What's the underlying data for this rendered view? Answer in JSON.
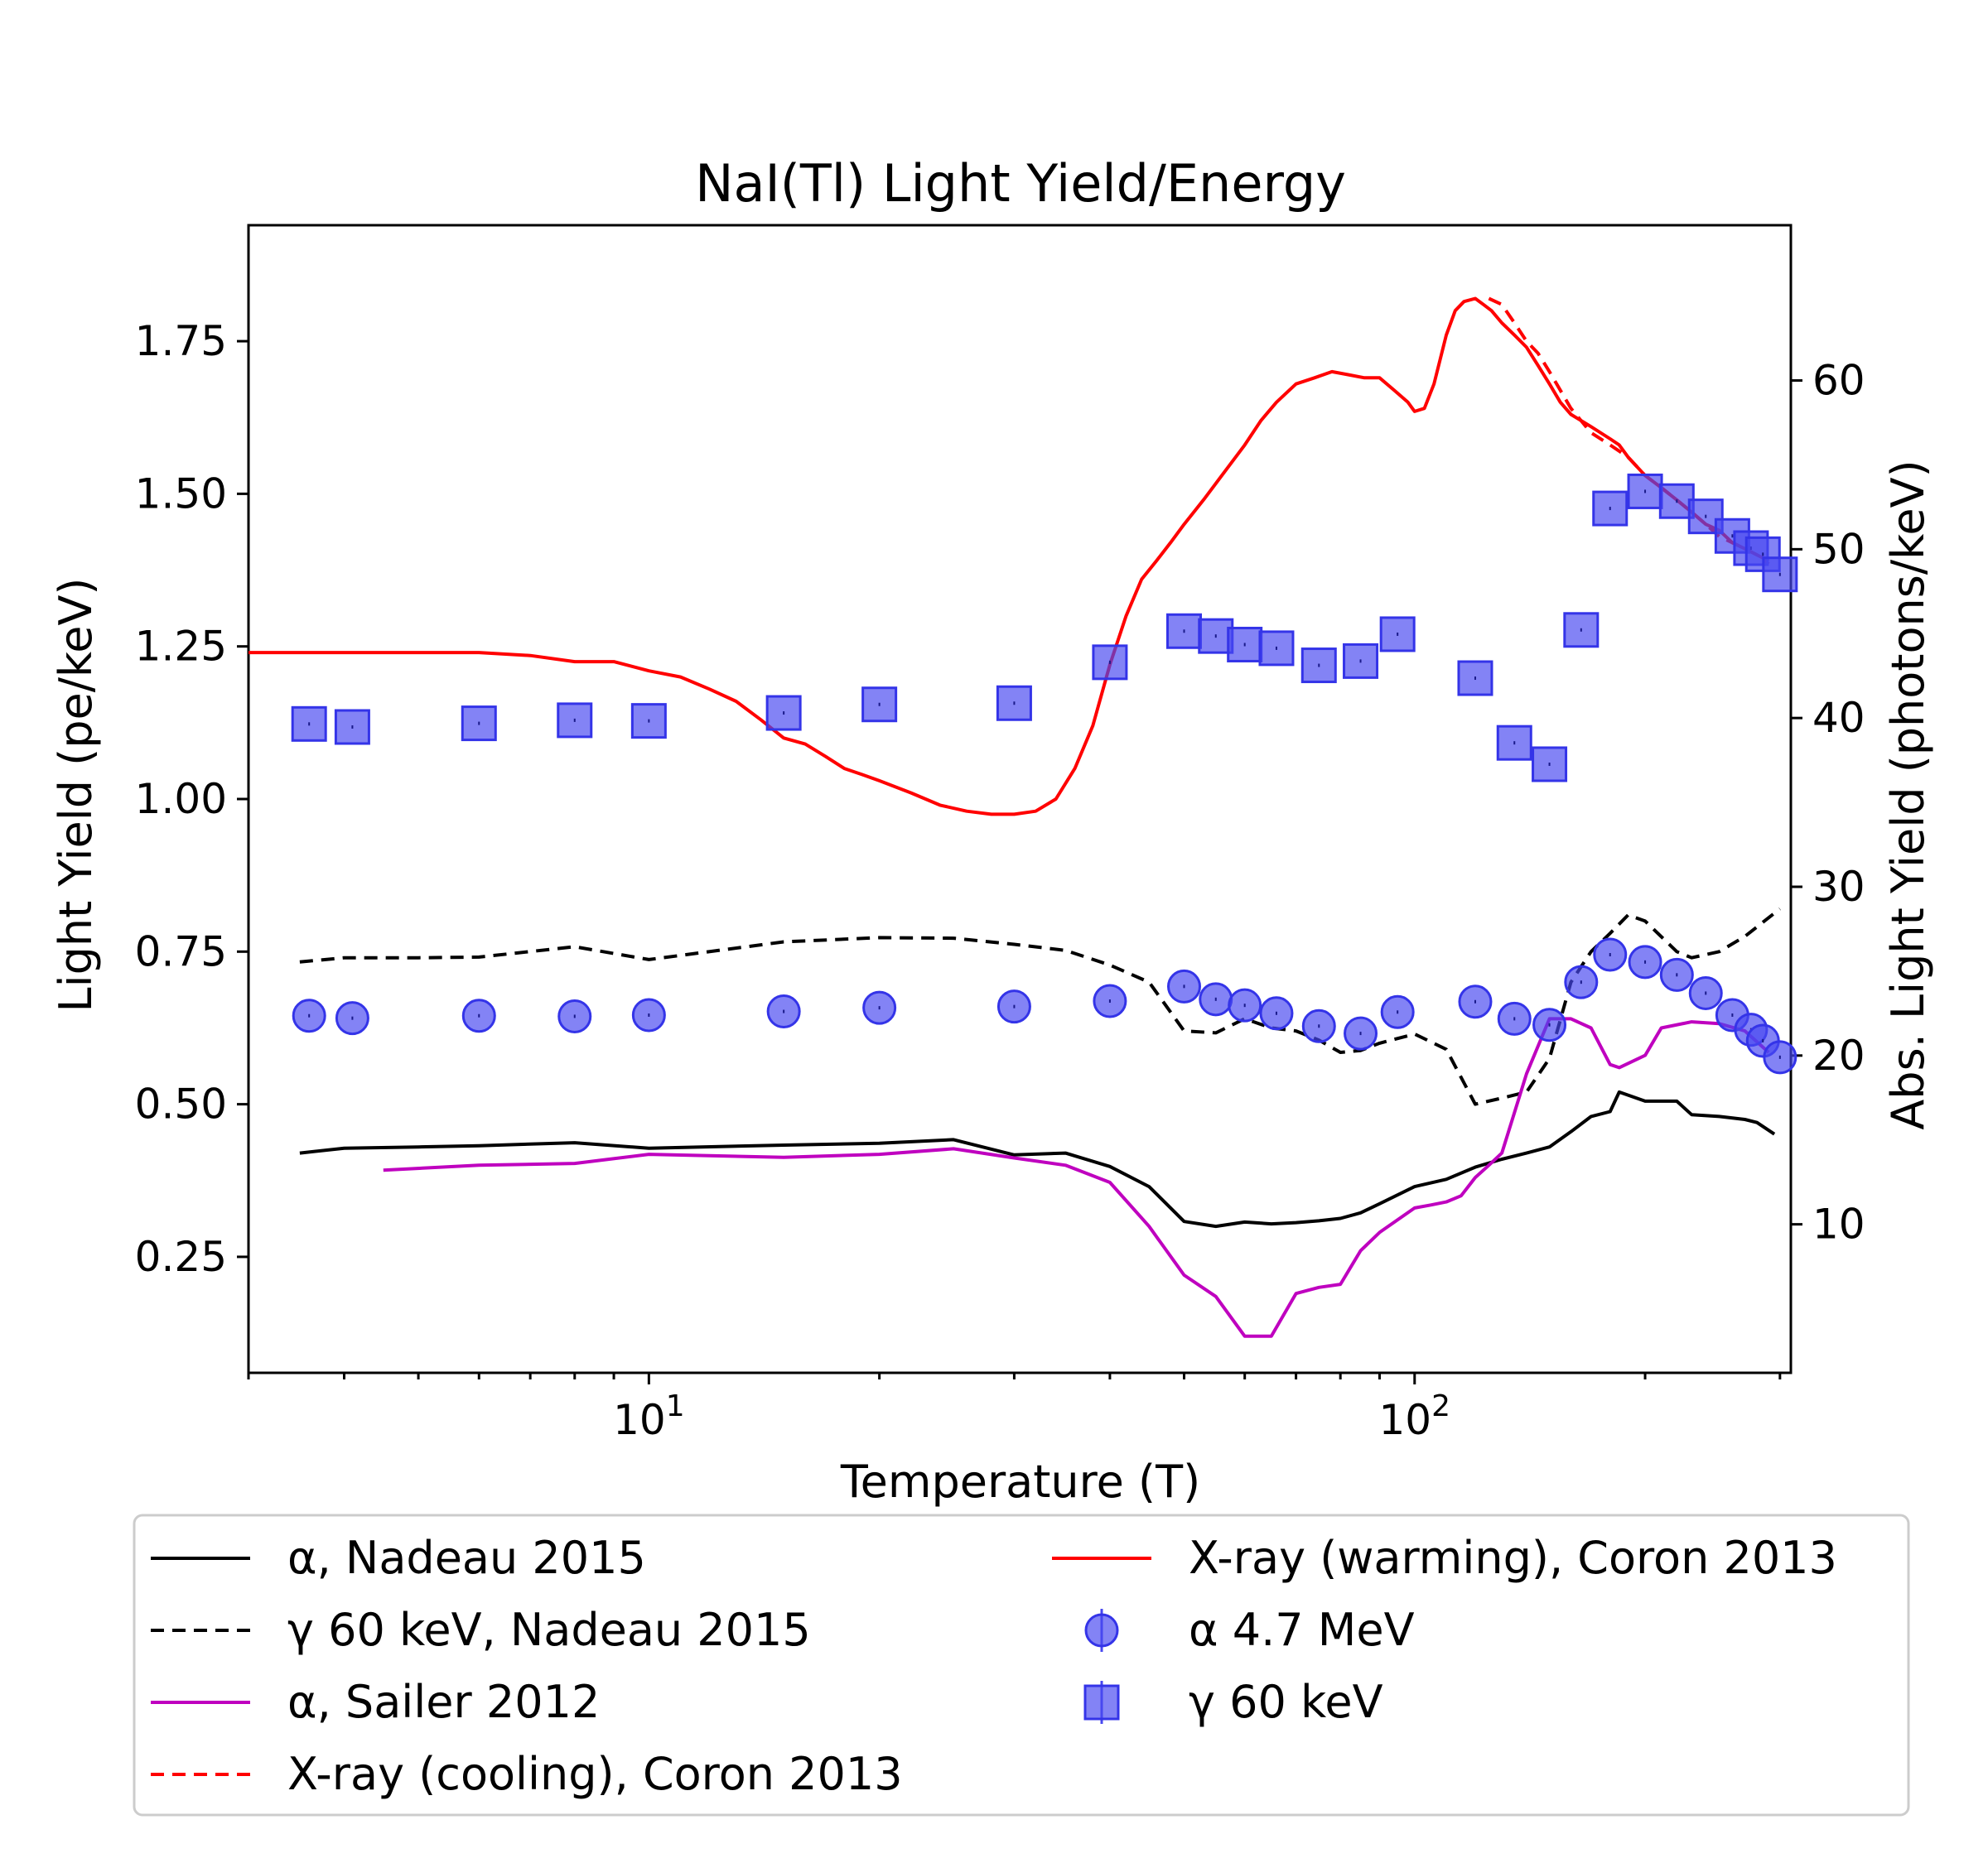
{
  "chart_data": {
    "type": "line",
    "title": "NaI(Tl) Light Yield/Energy",
    "xlabel": "Temperature (T)",
    "ylabel": "Light Yield (pe/keV)",
    "ylabel_right": "Abs. Light Yield (photons/keV)",
    "xscale": "log",
    "xlim": [
      3,
      310
    ],
    "ylim": [
      0.06,
      1.94
    ],
    "ylim_right": [
      1.2,
      69.2
    ],
    "x_ticks": [
      {
        "value": 10,
        "base": "10",
        "exp": "1"
      },
      {
        "value": 100,
        "base": "10",
        "exp": "2"
      }
    ],
    "y_ticks": [
      0.25,
      0.5,
      0.75,
      1.0,
      1.25,
      1.5,
      1.75
    ],
    "y_tick_labels": [
      "0.25",
      "0.50",
      "0.75",
      "1.00",
      "1.25",
      "1.50",
      "1.75"
    ],
    "y_right_ticks": [
      10,
      20,
      30,
      40,
      50,
      60
    ],
    "y_right_tick_labels": [
      "10",
      "20",
      "30",
      "40",
      "50",
      "60"
    ],
    "colors": {
      "nadeau_alpha": "#000000",
      "nadeau_gamma": "#000000",
      "sailer_alpha": "#bf00bf",
      "coron_cooling": "#ff0000",
      "coron_warming": "#ff0000",
      "alpha_points": "#4848f0",
      "gamma_points": "#4848f0"
    },
    "series": [
      {
        "name": "α, Nadeau 2015",
        "axis": "left",
        "style": "solid",
        "color_key": "nadeau_alpha",
        "x": [
          3.5,
          4,
          5,
          6,
          8,
          10,
          15,
          20,
          25,
          30,
          35,
          40,
          45,
          50,
          55,
          60,
          65,
          70,
          75,
          80,
          85,
          90,
          100,
          110,
          120,
          130,
          140,
          150,
          160,
          170,
          180,
          185,
          200,
          220,
          230,
          250,
          270,
          280,
          295
        ],
        "y": [
          0.42,
          0.428,
          0.43,
          0.432,
          0.437,
          0.428,
          0.433,
          0.436,
          0.442,
          0.417,
          0.42,
          0.398,
          0.365,
          0.308,
          0.3,
          0.307,
          0.304,
          0.306,
          0.309,
          0.313,
          0.322,
          0.337,
          0.365,
          0.377,
          0.397,
          0.41,
          0.42,
          0.43,
          0.455,
          0.48,
          0.488,
          0.52,
          0.505,
          0.505,
          0.483,
          0.48,
          0.475,
          0.47,
          0.451
        ]
      },
      {
        "name": "γ 60 keV, Nadeau 2015",
        "axis": "left",
        "style": "dashed",
        "color_key": "nadeau_gamma",
        "x": [
          3.5,
          4,
          5,
          6,
          8,
          10,
          15,
          20,
          25,
          30,
          35,
          40,
          45,
          50,
          55,
          60,
          65,
          70,
          75,
          80,
          85,
          90,
          100,
          110,
          120,
          130,
          140,
          150,
          160,
          170,
          180,
          190,
          200,
          220,
          230,
          250,
          270,
          300
        ],
        "y": [
          0.733,
          0.74,
          0.74,
          0.741,
          0.758,
          0.737,
          0.766,
          0.773,
          0.772,
          0.762,
          0.752,
          0.728,
          0.7,
          0.62,
          0.617,
          0.64,
          0.625,
          0.62,
          0.605,
          0.585,
          0.588,
          0.6,
          0.615,
          0.59,
          0.5,
          0.51,
          0.52,
          0.575,
          0.7,
          0.75,
          0.78,
          0.81,
          0.8,
          0.75,
          0.74,
          0.75,
          0.775,
          0.82
        ]
      },
      {
        "name": "α, Sailer 2012",
        "axis": "left",
        "style": "solid",
        "color_key": "sailer_alpha",
        "x": [
          4.5,
          6,
          8,
          10,
          15,
          20,
          25,
          30,
          35,
          40,
          45,
          50,
          55,
          60,
          65,
          70,
          75,
          80,
          85,
          90,
          100,
          105,
          110,
          115,
          120,
          125,
          130,
          140,
          150,
          160,
          170,
          180,
          185,
          200,
          210,
          230,
          250,
          270,
          290
        ],
        "y": [
          0.392,
          0.4,
          0.403,
          0.418,
          0.413,
          0.418,
          0.427,
          0.412,
          0.4,
          0.372,
          0.3,
          0.22,
          0.185,
          0.12,
          0.12,
          0.19,
          0.2,
          0.205,
          0.26,
          0.29,
          0.33,
          0.335,
          0.34,
          0.35,
          0.38,
          0.4,
          0.42,
          0.55,
          0.64,
          0.64,
          0.625,
          0.565,
          0.56,
          0.58,
          0.625,
          0.635,
          0.632,
          0.62,
          0.585
        ]
      },
      {
        "name": "X-ray (cooling), Coron 2013",
        "axis": "left",
        "style": "dashed",
        "color_key": "coron_cooling",
        "x": [
          125,
          130,
          135,
          140,
          145,
          150,
          160,
          170,
          180,
          185,
          190,
          200,
          210,
          220,
          230,
          240,
          250,
          260,
          270,
          280,
          290
        ],
        "y": [
          1.82,
          1.81,
          1.78,
          1.75,
          1.73,
          1.7,
          1.64,
          1.6,
          1.58,
          1.57,
          1.56,
          1.53,
          1.51,
          1.49,
          1.47,
          1.45,
          1.43,
          1.42,
          1.41,
          1.4,
          1.385
        ]
      },
      {
        "name": "X-ray (warming), Coron 2013",
        "axis": "left",
        "style": "solid",
        "color_key": "coron_warming",
        "x": [
          3,
          5,
          6,
          7,
          8,
          9,
          10,
          11,
          12,
          13,
          14,
          15,
          16,
          17,
          18,
          19,
          20,
          22,
          24,
          26,
          28,
          30,
          32,
          34,
          36,
          38,
          40,
          42,
          44,
          46,
          48,
          50,
          53,
          56,
          60,
          63,
          66,
          70,
          74,
          78,
          82,
          86,
          90,
          94,
          98,
          100,
          103,
          106,
          110,
          113,
          116,
          120,
          123,
          126,
          130,
          135,
          140,
          145,
          150,
          155,
          160,
          170,
          180,
          185,
          190,
          200,
          210,
          220,
          230,
          240,
          250,
          260,
          270,
          280,
          290
        ],
        "y": [
          1.24,
          1.24,
          1.24,
          1.235,
          1.225,
          1.225,
          1.21,
          1.2,
          1.18,
          1.16,
          1.13,
          1.1,
          1.09,
          1.07,
          1.05,
          1.04,
          1.03,
          1.01,
          0.99,
          0.98,
          0.975,
          0.975,
          0.98,
          1.0,
          1.05,
          1.12,
          1.22,
          1.3,
          1.36,
          1.39,
          1.42,
          1.45,
          1.49,
          1.53,
          1.58,
          1.62,
          1.65,
          1.68,
          1.69,
          1.7,
          1.695,
          1.69,
          1.69,
          1.67,
          1.65,
          1.635,
          1.64,
          1.68,
          1.76,
          1.8,
          1.815,
          1.82,
          1.81,
          1.8,
          1.78,
          1.76,
          1.74,
          1.71,
          1.68,
          1.65,
          1.63,
          1.61,
          1.59,
          1.58,
          1.56,
          1.53,
          1.51,
          1.49,
          1.47,
          1.45,
          1.44,
          1.42,
          1.41,
          1.4,
          1.39
        ]
      },
      {
        "name": "α 4.7 MeV",
        "axis": "left",
        "style": "markers-circle",
        "color_key": "alpha_points",
        "x": [
          3.6,
          4.1,
          6,
          8,
          10,
          15,
          20,
          30,
          40,
          50,
          55,
          60,
          66,
          75,
          85,
          95,
          120,
          135,
          150,
          165,
          180,
          200,
          220,
          240,
          260,
          275,
          285,
          300
        ],
        "y": [
          0.645,
          0.641,
          0.645,
          0.644,
          0.646,
          0.652,
          0.658,
          0.66,
          0.669,
          0.693,
          0.672,
          0.662,
          0.649,
          0.628,
          0.616,
          0.651,
          0.668,
          0.64,
          0.63,
          0.7,
          0.745,
          0.733,
          0.712,
          0.682,
          0.646,
          0.622,
          0.604,
          0.577
        ]
      },
      {
        "name": "γ 60 keV",
        "axis": "left",
        "style": "markers-square",
        "color_key": "gamma_points",
        "x": [
          3.6,
          4.1,
          6,
          8,
          10,
          15,
          20,
          30,
          40,
          50,
          55,
          60,
          66,
          75,
          85,
          95,
          120,
          135,
          150,
          165,
          180,
          200,
          220,
          240,
          260,
          275,
          285,
          300
        ],
        "y": [
          1.123,
          1.118,
          1.124,
          1.129,
          1.128,
          1.141,
          1.155,
          1.157,
          1.224,
          1.275,
          1.267,
          1.253,
          1.247,
          1.219,
          1.226,
          1.27,
          1.198,
          1.092,
          1.057,
          1.277,
          1.476,
          1.504,
          1.488,
          1.463,
          1.431,
          1.411,
          1.401,
          1.368
        ]
      }
    ],
    "legend": {
      "placement": "below",
      "columns": 2,
      "entries_left": [
        "α, Nadeau 2015",
        "γ 60 keV, Nadeau 2015",
        "α, Sailer 2012",
        "X-ray (cooling), Coron 2013"
      ],
      "entries_right": [
        "X-ray (warming), Coron 2013",
        "α 4.7 MeV",
        "γ 60 keV"
      ]
    }
  }
}
